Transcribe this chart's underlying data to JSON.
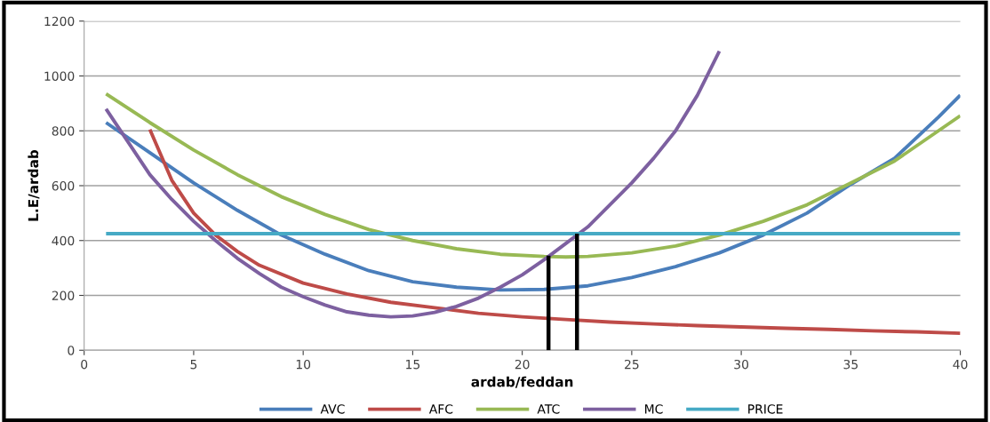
{
  "chart_data": {
    "type": "line",
    "xlabel": "ardab/feddan",
    "ylabel": "L.E/ardab",
    "xlim": [
      0,
      40
    ],
    "xticks": [
      0,
      5,
      10,
      15,
      20,
      25,
      30,
      35,
      40
    ],
    "ylim": [
      0,
      1200
    ],
    "yticks": [
      0,
      200,
      400,
      600,
      800,
      1000,
      1200
    ],
    "grid": "y",
    "legend": "bottom",
    "marker": "none",
    "line_style": "solid",
    "series": [
      {
        "name": "AVC",
        "color": "#4a7ebb",
        "x": [
          1,
          3,
          5,
          7,
          9,
          11,
          13,
          15,
          17,
          19,
          21,
          23,
          25,
          27,
          29,
          31,
          33,
          35,
          37,
          39,
          40
        ],
        "values": [
          830,
          720,
          610,
          510,
          420,
          350,
          290,
          250,
          230,
          220,
          222,
          235,
          265,
          305,
          355,
          420,
          500,
          605,
          700,
          850,
          930
        ]
      },
      {
        "name": "AFC",
        "color": "#be4b48",
        "x": [
          3,
          4,
          5,
          6,
          7,
          8,
          10,
          12,
          14,
          16,
          18,
          20,
          22,
          24,
          26,
          28,
          30,
          32,
          34,
          36,
          38,
          40
        ],
        "values": [
          805,
          620,
          500,
          420,
          360,
          310,
          245,
          205,
          175,
          155,
          135,
          122,
          112,
          103,
          96,
          90,
          85,
          80,
          76,
          71,
          67,
          62
        ]
      },
      {
        "name": "ATC",
        "color": "#98b954",
        "x": [
          1,
          3,
          5,
          7,
          9,
          11,
          13,
          15,
          17,
          19,
          21,
          22,
          23,
          25,
          27,
          29,
          31,
          33,
          35,
          37,
          39,
          40
        ],
        "values": [
          935,
          830,
          730,
          640,
          560,
          495,
          440,
          400,
          370,
          350,
          342,
          340,
          342,
          355,
          380,
          420,
          470,
          530,
          610,
          690,
          800,
          855
        ]
      },
      {
        "name": "MC",
        "color": "#7d60a0",
        "x": [
          1,
          2,
          3,
          4,
          5,
          6,
          7,
          8,
          9,
          10,
          11,
          12,
          13,
          14,
          15,
          16,
          17,
          18,
          19,
          20,
          21,
          22,
          23,
          24,
          25,
          26,
          27,
          28,
          29
        ],
        "values": [
          880,
          760,
          640,
          550,
          470,
          400,
          335,
          280,
          230,
          195,
          165,
          140,
          128,
          122,
          125,
          138,
          160,
          190,
          230,
          275,
          330,
          390,
          450,
          530,
          610,
          700,
          800,
          930,
          1090
        ]
      },
      {
        "name": "PRICE",
        "color": "#46aac5",
        "x": [
          1,
          40
        ],
        "values": [
          425,
          425
        ]
      },
      {
        "color": "#000000",
        "x": [
          21.2,
          21.2
        ],
        "values": [
          0,
          345
        ]
      },
      {
        "color": "#000000",
        "x": [
          22.5,
          22.5
        ],
        "values": [
          0,
          425
        ]
      }
    ]
  }
}
